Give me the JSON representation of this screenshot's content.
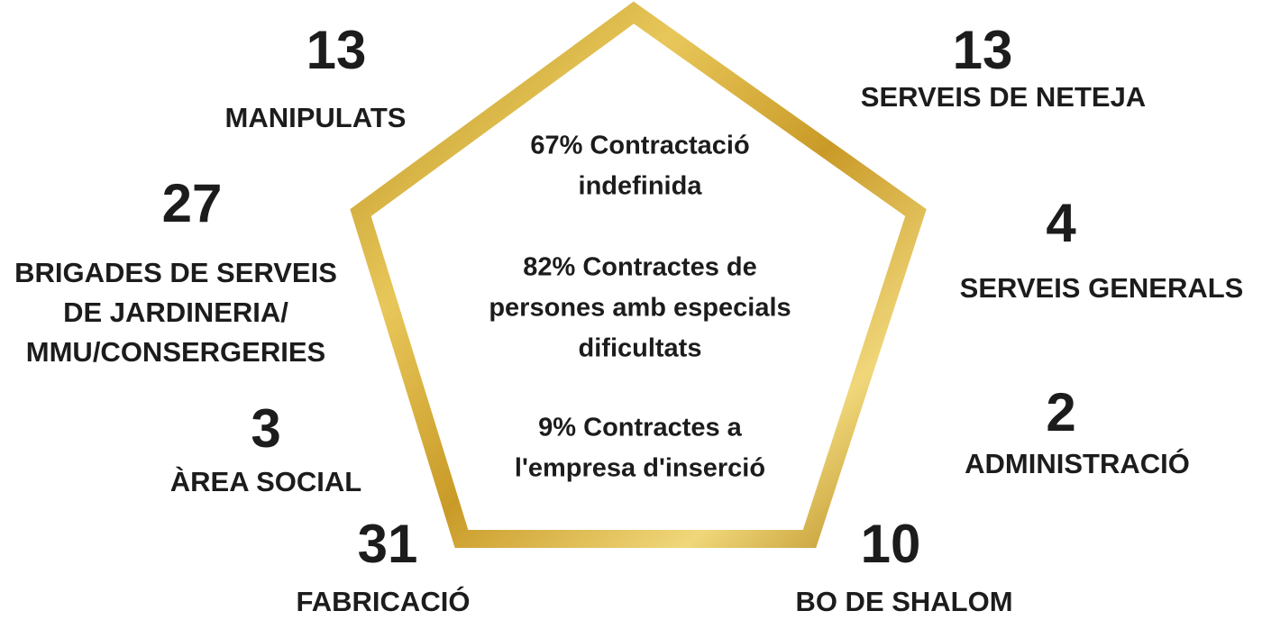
{
  "items": [
    {
      "number": 13,
      "label": [
        "MANIPULATS"
      ]
    },
    {
      "number": 13,
      "label": [
        "SERVEIS DE NETEJA"
      ]
    },
    {
      "number": 27,
      "label": [
        "BRIGADES DE SERVEIS",
        "DE JARDINERIA/",
        "MMU/CONSERGERIES"
      ]
    },
    {
      "number": 4,
      "label": [
        "SERVEIS GENERALS"
      ]
    },
    {
      "number": 3,
      "label": [
        "ÀREA SOCIAL"
      ]
    },
    {
      "number": 2,
      "label": [
        "ADMINISTRACIÓ"
      ]
    },
    {
      "number": 31,
      "label": [
        "FABRICACIÓ"
      ]
    },
    {
      "number": 10,
      "label": [
        "BO DE SHALOM"
      ]
    }
  ],
  "center": [
    [
      "67% Contractació",
      "indefinida"
    ],
    [
      "82% Contractes de",
      "persones amb especials",
      "dificultats"
    ],
    [
      "9% Contractes a",
      "l'empresa d'inserció"
    ]
  ]
}
